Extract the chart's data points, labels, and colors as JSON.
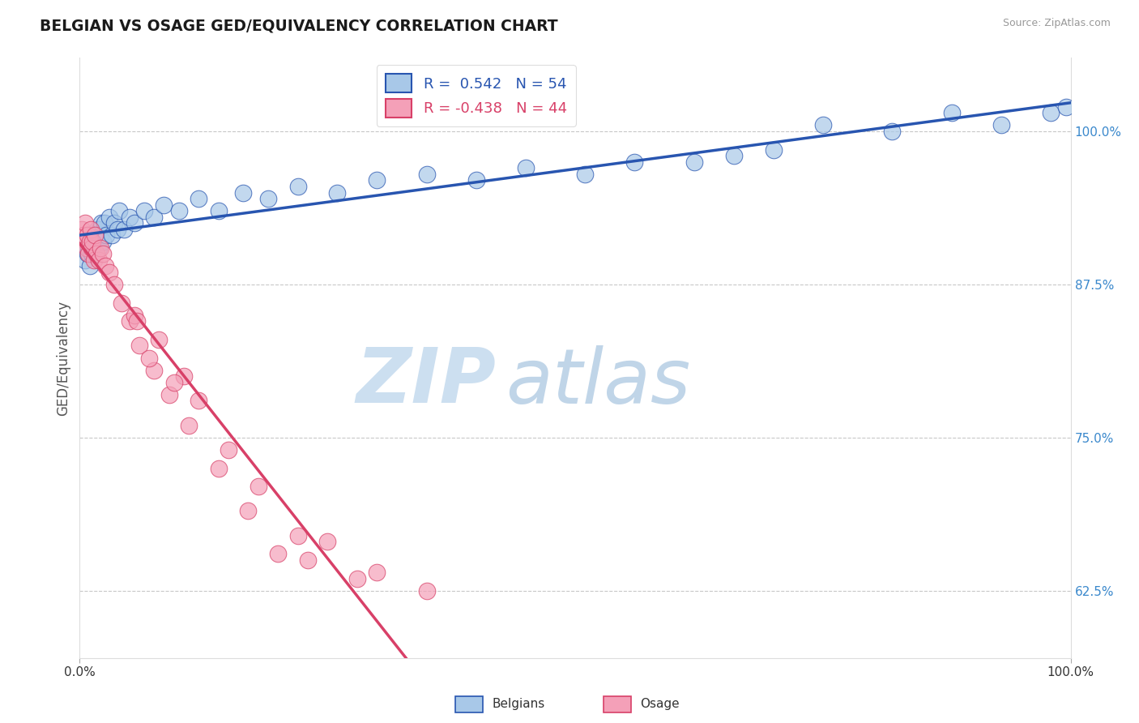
{
  "title": "BELGIAN VS OSAGE GED/EQUIVALENCY CORRELATION CHART",
  "source": "Source: ZipAtlas.com",
  "ylabel": "GED/Equivalency",
  "yticks": [
    62.5,
    75.0,
    87.5,
    100.0
  ],
  "ytick_labels": [
    "62.5%",
    "75.0%",
    "87.5%",
    "100.0%"
  ],
  "xlim": [
    0.0,
    100.0
  ],
  "ylim": [
    57.0,
    106.0
  ],
  "belgian_R": 0.542,
  "belgian_N": 54,
  "osage_R": -0.438,
  "osage_N": 44,
  "belgian_color": "#a8c8e8",
  "osage_color": "#f4a0b8",
  "belgian_line_color": "#2855b0",
  "osage_line_color": "#d84068",
  "watermark_zip_color": "#ccdff0",
  "watermark_atlas_color": "#c0d5e8",
  "belgian_x": [
    0.3,
    0.5,
    0.7,
    0.8,
    0.9,
    1.0,
    1.1,
    1.2,
    1.3,
    1.4,
    1.5,
    1.6,
    1.7,
    1.8,
    1.9,
    2.0,
    2.1,
    2.2,
    2.3,
    2.5,
    2.7,
    3.0,
    3.2,
    3.5,
    3.8,
    4.0,
    4.5,
    5.0,
    5.5,
    6.5,
    7.5,
    8.5,
    10.0,
    12.0,
    14.0,
    16.5,
    19.0,
    22.0,
    26.0,
    30.0,
    35.0,
    40.0,
    45.0,
    51.0,
    56.0,
    62.0,
    66.0,
    70.0,
    75.0,
    82.0,
    88.0,
    93.0,
    98.0,
    99.5
  ],
  "belgian_y": [
    90.5,
    89.5,
    91.0,
    90.0,
    90.5,
    89.0,
    91.5,
    90.0,
    91.0,
    90.5,
    91.5,
    90.0,
    91.5,
    92.0,
    90.5,
    92.0,
    91.5,
    92.5,
    91.0,
    92.5,
    91.5,
    93.0,
    91.5,
    92.5,
    92.0,
    93.5,
    92.0,
    93.0,
    92.5,
    93.5,
    93.0,
    94.0,
    93.5,
    94.5,
    93.5,
    95.0,
    94.5,
    95.5,
    95.0,
    96.0,
    96.5,
    96.0,
    97.0,
    96.5,
    97.5,
    97.5,
    98.0,
    98.5,
    100.5,
    100.0,
    101.5,
    100.5,
    101.5,
    102.0
  ],
  "osage_x": [
    0.2,
    0.4,
    0.5,
    0.6,
    0.7,
    0.8,
    0.9,
    1.0,
    1.1,
    1.2,
    1.3,
    1.4,
    1.5,
    1.7,
    1.9,
    2.1,
    2.3,
    2.6,
    3.0,
    3.5,
    4.2,
    5.0,
    6.0,
    7.5,
    9.0,
    11.0,
    14.0,
    17.0,
    20.0,
    23.0,
    28.0,
    35.0,
    5.5,
    8.0,
    10.5,
    15.0,
    18.0,
    25.0,
    30.0,
    7.0,
    12.0,
    5.8,
    9.5,
    22.0
  ],
  "osage_y": [
    92.0,
    91.5,
    92.5,
    91.0,
    90.5,
    91.5,
    90.0,
    91.0,
    92.0,
    90.5,
    91.0,
    89.5,
    91.5,
    90.0,
    89.5,
    90.5,
    90.0,
    89.0,
    88.5,
    87.5,
    86.0,
    84.5,
    82.5,
    80.5,
    78.5,
    76.0,
    72.5,
    69.0,
    65.5,
    65.0,
    63.5,
    62.5,
    85.0,
    83.0,
    80.0,
    74.0,
    71.0,
    66.5,
    64.0,
    81.5,
    78.0,
    84.5,
    79.5,
    67.0
  ]
}
